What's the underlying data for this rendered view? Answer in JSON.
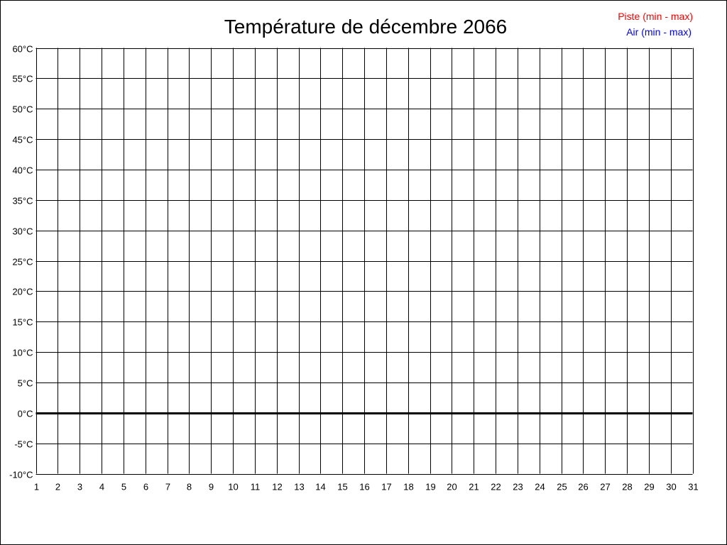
{
  "chart_data": {
    "type": "line",
    "title": "Température de décembre 2066",
    "xlabel": "",
    "ylabel": "",
    "x_ticks": [
      1,
      2,
      3,
      4,
      5,
      6,
      7,
      8,
      9,
      10,
      11,
      12,
      13,
      14,
      15,
      16,
      17,
      18,
      19,
      20,
      21,
      22,
      23,
      24,
      25,
      26,
      27,
      28,
      29,
      30,
      31
    ],
    "y_ticks": [
      60,
      55,
      50,
      45,
      40,
      35,
      30,
      25,
      20,
      15,
      10,
      5,
      0,
      -5,
      -10
    ],
    "y_tick_suffix": "°C",
    "xlim": [
      1,
      31
    ],
    "ylim": [
      -10,
      60
    ],
    "grid": true,
    "zero_line_emphasized": true,
    "legend_placement": "top-right",
    "legend": [
      {
        "label": "Piste (min - max)",
        "color": "#ff0000"
      },
      {
        "label": "Air (min - max)",
        "color": "#0000ff"
      }
    ],
    "series": []
  }
}
